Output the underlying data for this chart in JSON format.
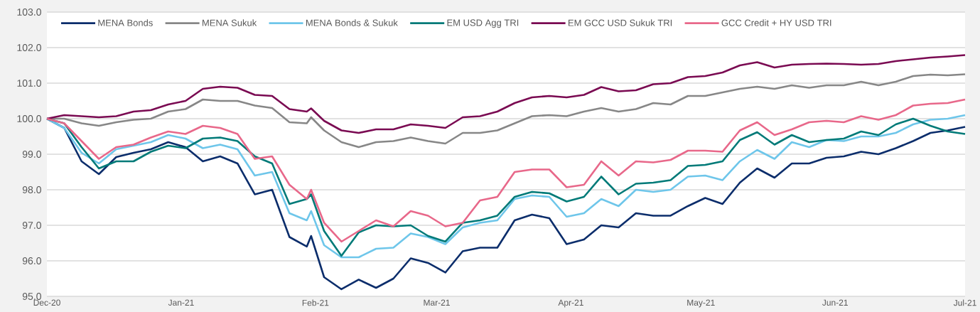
{
  "chart_data": {
    "type": "line",
    "x": [
      "2020-12-01",
      "2020-12-05",
      "2020-12-09",
      "2020-12-13",
      "2020-12-17",
      "2020-12-21",
      "2020-12-25",
      "2020-12-29",
      "2021-01-02",
      "2021-01-06",
      "2021-01-10",
      "2021-01-14",
      "2021-01-18",
      "2021-01-22",
      "2021-01-26",
      "2021-01-30",
      "2021-01-31",
      "2021-02-03",
      "2021-02-07",
      "2021-02-11",
      "2021-02-15",
      "2021-02-19",
      "2021-02-23",
      "2021-02-27",
      "2021-03-03",
      "2021-03-07",
      "2021-03-11",
      "2021-03-15",
      "2021-03-19",
      "2021-03-23",
      "2021-03-27",
      "2021-03-31",
      "2021-04-04",
      "2021-04-08",
      "2021-04-12",
      "2021-04-16",
      "2021-04-20",
      "2021-04-24",
      "2021-04-28",
      "2021-05-02",
      "2021-05-06",
      "2021-05-10",
      "2021-05-14",
      "2021-05-18",
      "2021-05-22",
      "2021-05-26",
      "2021-05-30",
      "2021-06-03",
      "2021-06-07",
      "2021-06-11",
      "2021-06-15",
      "2021-06-19",
      "2021-06-23",
      "2021-06-27",
      "2021-07-01"
    ],
    "series": [
      {
        "name": "MENA Bonds",
        "color": "#0b2d6b",
        "values": [
          100,
          99.74,
          98.8,
          98.44,
          98.92,
          99.04,
          99.14,
          99.34,
          99.2,
          98.8,
          98.94,
          98.74,
          97.87,
          98.0,
          96.67,
          96.4,
          96.7,
          95.54,
          95.2,
          95.47,
          95.24,
          95.5,
          96.07,
          95.94,
          95.67,
          96.27,
          96.37,
          96.37,
          97.14,
          97.3,
          97.2,
          96.47,
          96.6,
          97.0,
          96.94,
          97.34,
          97.27,
          97.27,
          97.54,
          97.77,
          97.6,
          98.2,
          98.6,
          98.34,
          98.74,
          98.74,
          98.9,
          98.94,
          99.07,
          99.0,
          99.17,
          99.37,
          99.6,
          99.67,
          99.77
        ]
      },
      {
        "name": "MENA Sukuk",
        "color": "#878787",
        "values": [
          100,
          100.0,
          99.87,
          99.8,
          99.9,
          99.97,
          100,
          100.2,
          100.27,
          100.54,
          100.5,
          100.5,
          100.37,
          100.3,
          99.9,
          99.87,
          100.04,
          99.67,
          99.34,
          99.2,
          99.34,
          99.37,
          99.47,
          99.37,
          99.3,
          99.6,
          99.6,
          99.67,
          99.87,
          100.07,
          100.1,
          100.07,
          100.2,
          100.3,
          100.2,
          100.27,
          100.44,
          100.4,
          100.64,
          100.64,
          100.74,
          100.84,
          100.9,
          100.84,
          100.94,
          100.87,
          100.94,
          100.94,
          101.04,
          100.94,
          101.04,
          101.2,
          101.24,
          101.22,
          101.25
        ]
      },
      {
        "name": "MENA Bonds & Sukuk",
        "color": "#6ec6ea",
        "values": [
          100,
          99.74,
          99.04,
          98.74,
          99.14,
          99.24,
          99.34,
          99.54,
          99.44,
          99.17,
          99.27,
          99.14,
          98.4,
          98.5,
          97.34,
          97.14,
          97.4,
          96.44,
          96.1,
          96.1,
          96.34,
          96.37,
          96.77,
          96.67,
          96.47,
          96.94,
          97.07,
          97.14,
          97.74,
          97.84,
          97.8,
          97.24,
          97.34,
          97.74,
          97.54,
          98.0,
          97.94,
          98.0,
          98.37,
          98.4,
          98.27,
          98.8,
          99.12,
          98.87,
          99.34,
          99.2,
          99.4,
          99.37,
          99.5,
          99.5,
          99.6,
          99.84,
          99.97,
          100.0,
          100.1
        ]
      },
      {
        "name": "EM USD Agg TRI",
        "color": "#007a78",
        "values": [
          100,
          99.87,
          99.2,
          98.6,
          98.8,
          98.8,
          99.07,
          99.24,
          99.17,
          99.44,
          99.47,
          99.37,
          98.94,
          98.74,
          97.6,
          97.74,
          97.87,
          96.84,
          96.14,
          96.8,
          97.0,
          96.97,
          97.0,
          96.7,
          96.54,
          97.07,
          97.14,
          97.27,
          97.8,
          97.94,
          97.9,
          97.67,
          97.8,
          98.37,
          97.87,
          98.17,
          98.2,
          98.27,
          98.67,
          98.7,
          98.8,
          99.4,
          99.62,
          99.27,
          99.54,
          99.34,
          99.4,
          99.44,
          99.64,
          99.54,
          99.84,
          100.0,
          99.8,
          99.64,
          99.57
        ]
      },
      {
        "name": "EM GCC USD Sukuk TRI",
        "color": "#7a0a52",
        "values": [
          100,
          100.1,
          100.07,
          100.04,
          100.07,
          100.2,
          100.24,
          100.4,
          100.5,
          100.84,
          100.9,
          100.87,
          100.67,
          100.64,
          100.27,
          100.2,
          100.29,
          99.94,
          99.67,
          99.6,
          99.7,
          99.7,
          99.84,
          99.8,
          99.74,
          100.04,
          100.07,
          100.2,
          100.44,
          100.6,
          100.64,
          100.6,
          100.67,
          100.89,
          100.77,
          100.8,
          100.97,
          101.0,
          101.17,
          101.2,
          101.3,
          101.5,
          101.59,
          101.44,
          101.52,
          101.54,
          101.55,
          101.54,
          101.52,
          101.54,
          101.62,
          101.67,
          101.72,
          101.75,
          101.79
        ]
      },
      {
        "name": "GCC Credit + HY USD TRI",
        "color": "#e8688a",
        "values": [
          100,
          99.87,
          99.37,
          98.87,
          99.2,
          99.27,
          99.47,
          99.64,
          99.57,
          99.8,
          99.74,
          99.57,
          98.87,
          98.94,
          98.14,
          97.74,
          98.0,
          97.07,
          96.54,
          96.84,
          97.14,
          96.97,
          97.4,
          97.27,
          96.97,
          97.07,
          97.7,
          97.8,
          98.5,
          98.57,
          98.57,
          98.07,
          98.14,
          98.8,
          98.4,
          98.8,
          98.77,
          98.84,
          99.1,
          99.1,
          99.07,
          99.67,
          99.9,
          99.54,
          99.7,
          99.9,
          99.94,
          99.9,
          100.07,
          99.97,
          100.1,
          100.37,
          100.42,
          100.44,
          100.54
        ]
      }
    ],
    "xlim": [
      "2020-12-01",
      "2021-07-01"
    ],
    "xticks": [
      {
        "value": "2020-12-01",
        "label": "Dec-20"
      },
      {
        "value": "2021-01-01",
        "label": "Jan-21"
      },
      {
        "value": "2021-02-01",
        "label": "Feb-21"
      },
      {
        "value": "2021-03-01",
        "label": "Mar-21"
      },
      {
        "value": "2021-04-01",
        "label": "Apr-21"
      },
      {
        "value": "2021-05-01",
        "label": "May-21"
      },
      {
        "value": "2021-06-01",
        "label": "Jun-21"
      },
      {
        "value": "2021-07-01",
        "label": "Jul-21"
      }
    ],
    "ylim": [
      95,
      103
    ],
    "yticks": [
      {
        "value": 95,
        "label": "95.0"
      },
      {
        "value": 96,
        "label": "96.0"
      },
      {
        "value": 97,
        "label": "97.0"
      },
      {
        "value": 98,
        "label": "98.0"
      },
      {
        "value": 99,
        "label": "99.0"
      },
      {
        "value": 100,
        "label": "100.0"
      },
      {
        "value": 101,
        "label": "101.0"
      },
      {
        "value": 102,
        "label": "102.0"
      },
      {
        "value": 103,
        "label": "103.0"
      }
    ],
    "grid": "y",
    "legend": "top",
    "marker": "none",
    "line_style": "solid"
  }
}
